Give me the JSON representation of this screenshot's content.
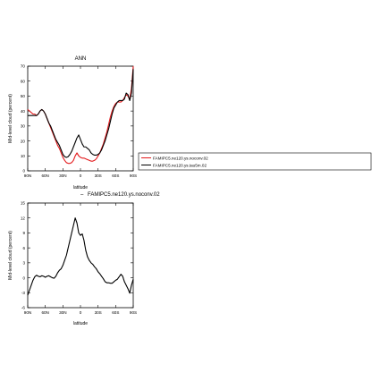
{
  "chart_data": [
    {
      "type": "line",
      "title": "ANN",
      "xlabel": "latitude",
      "ylabel": "Mid-level cloud (percent)",
      "xlim": [
        -90,
        90
      ],
      "ylim": [
        0,
        70
      ],
      "xtick_values": [
        -90,
        -60,
        -30,
        0,
        30,
        60,
        90
      ],
      "xtick_labels": [
        "90N",
        "60N",
        "30N",
        "0",
        "30S",
        "60S",
        "90S"
      ],
      "ytick_values": [
        0,
        10,
        20,
        30,
        40,
        50,
        60,
        70
      ],
      "ytick_labels": [
        "0",
        "10",
        "20",
        "30",
        "40",
        "50",
        "60",
        "70"
      ],
      "grid": false,
      "legend_position": "right",
      "series": [
        {
          "name": "FAMIPC5.ne120.ys.noconv.02",
          "color": "#e41a1c",
          "x": [
            -90,
            -87,
            -84,
            -81,
            -78,
            -75,
            -72,
            -69,
            -66,
            -63,
            -60,
            -57,
            -54,
            -51,
            -48,
            -45,
            -42,
            -39,
            -36,
            -33,
            -30,
            -27,
            -24,
            -21,
            -18,
            -15,
            -12,
            -9,
            -6,
            -3,
            0,
            3,
            6,
            9,
            12,
            15,
            18,
            21,
            24,
            27,
            30,
            33,
            36,
            39,
            42,
            45,
            48,
            51,
            54,
            57,
            60,
            63,
            66,
            69,
            72,
            75,
            78,
            81,
            84,
            87,
            90
          ],
          "y": [
            41,
            40,
            39,
            38,
            38,
            37,
            38,
            40,
            41,
            40,
            38,
            35,
            32,
            29,
            26,
            23,
            20,
            17,
            15,
            12,
            9,
            7,
            5.5,
            5,
            5,
            5.5,
            7,
            10,
            12,
            10,
            9,
            8.5,
            8.5,
            8,
            7.5,
            7,
            6.5,
            6.5,
            7,
            8,
            10,
            12,
            15,
            18,
            22,
            26,
            31,
            36,
            40,
            43,
            45,
            46,
            46,
            46,
            47,
            49,
            51,
            50,
            48,
            55,
            70
          ]
        },
        {
          "name": "FAMIPC5.ne120.ys.tau5m.02",
          "color": "#000000",
          "x": [
            -90,
            -87,
            -84,
            -81,
            -78,
            -75,
            -72,
            -69,
            -66,
            -63,
            -60,
            -57,
            -54,
            -51,
            -48,
            -45,
            -42,
            -39,
            -36,
            -33,
            -30,
            -27,
            -24,
            -21,
            -18,
            -15,
            -12,
            -9,
            -6,
            -3,
            0,
            3,
            6,
            9,
            12,
            15,
            18,
            21,
            24,
            27,
            30,
            33,
            36,
            39,
            42,
            45,
            48,
            51,
            54,
            57,
            60,
            63,
            66,
            69,
            72,
            75,
            78,
            81,
            84,
            87,
            90
          ],
          "y": [
            37,
            37,
            37,
            37,
            37,
            37,
            38,
            40,
            41,
            40,
            38,
            35,
            32,
            30,
            27,
            24,
            21,
            19,
            17,
            14,
            11,
            9.5,
            9,
            9.5,
            11,
            13,
            16,
            19,
            22,
            24,
            21,
            18,
            16,
            16,
            15,
            14,
            12,
            11,
            10.5,
            10.5,
            11,
            12,
            14,
            17,
            20,
            24,
            28,
            33,
            38,
            42,
            44,
            46,
            47,
            47,
            47,
            48,
            52,
            51,
            47,
            52,
            68
          ]
        }
      ]
    },
    {
      "type": "line",
      "title": "FAMIPC5.ne120.ys.noconv.02",
      "xlabel": "latitude",
      "ylabel": "Mid-level cloud (percent)",
      "xlim": [
        -90,
        90
      ],
      "ylim": [
        -6,
        15
      ],
      "xtick_values": [
        -90,
        -60,
        -30,
        0,
        30,
        60,
        90
      ],
      "xtick_labels": [
        "90N",
        "60N",
        "30N",
        "0",
        "30S",
        "60S",
        "90S"
      ],
      "ytick_values": [
        -6,
        -3,
        0,
        3,
        6,
        9,
        12,
        15
      ],
      "ytick_labels": [
        "-6",
        "-3",
        "0",
        "3",
        "6",
        "9",
        "12",
        "15"
      ],
      "grid": false,
      "series": [
        {
          "color": "#000000",
          "x": [
            -90,
            -87,
            -84,
            -81,
            -78,
            -75,
            -72,
            -69,
            -66,
            -63,
            -60,
            -57,
            -54,
            -51,
            -48,
            -45,
            -42,
            -39,
            -36,
            -33,
            -30,
            -27,
            -24,
            -21,
            -18,
            -15,
            -12,
            -9,
            -6,
            -3,
            0,
            3,
            6,
            9,
            12,
            15,
            18,
            21,
            24,
            27,
            30,
            33,
            36,
            39,
            42,
            45,
            48,
            51,
            54,
            57,
            60,
            63,
            66,
            69,
            72,
            75,
            78,
            81,
            84,
            87,
            90
          ],
          "y": [
            -3.5,
            -2.5,
            -1.5,
            -0.5,
            0.2,
            0.5,
            0.3,
            0.2,
            0.4,
            0.3,
            0.1,
            0.3,
            0.4,
            0.2,
            0,
            -0.1,
            0.3,
            1,
            1.5,
            1.8,
            2.5,
            3.5,
            4.5,
            6,
            7.5,
            9,
            10.5,
            12,
            11,
            9,
            8.5,
            8.8,
            7.5,
            5.5,
            4.2,
            3.5,
            3,
            2.7,
            2.2,
            1.8,
            1.2,
            0.8,
            0.3,
            -0.2,
            -0.8,
            -1,
            -1,
            -1.1,
            -1.1,
            -0.8,
            -0.5,
            -0.3,
            0.2,
            0.7,
            0.3,
            -0.8,
            -1.5,
            -2.2,
            -3.1,
            -1.5,
            -0.3
          ]
        }
      ]
    }
  ]
}
